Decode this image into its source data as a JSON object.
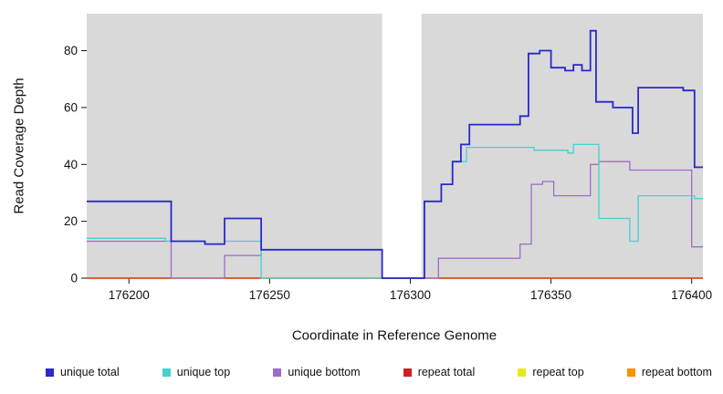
{
  "chart_data": {
    "type": "line",
    "subtype": "step",
    "title": "",
    "xlabel": "Coordinate in Reference Genome",
    "ylabel": "Read Coverage Depth",
    "xlim": [
      176185,
      176404
    ],
    "ylim": [
      0,
      93
    ],
    "xticks": [
      176200,
      176250,
      176300,
      176350,
      176400
    ],
    "yticks": [
      0,
      20,
      40,
      60,
      80
    ],
    "plot_bg": "#d9d9d9",
    "gap_region": [
      176290,
      176304
    ],
    "legend_position": "bottom",
    "series": [
      {
        "name": "unique total",
        "color": "#2929cc",
        "stroke_width": 1.8,
        "points": [
          [
            176185,
            27
          ],
          [
            176215,
            13
          ],
          [
            176227,
            12
          ],
          [
            176234,
            21
          ],
          [
            176247,
            10
          ],
          [
            176290,
            0
          ],
          [
            176305,
            27
          ],
          [
            176311,
            33
          ],
          [
            176315,
            41
          ],
          [
            176318,
            47
          ],
          [
            176321,
            54
          ],
          [
            176339,
            57
          ],
          [
            176342,
            79
          ],
          [
            176346,
            80
          ],
          [
            176350,
            74
          ],
          [
            176355,
            73
          ],
          [
            176358,
            75
          ],
          [
            176361,
            73
          ],
          [
            176364,
            87
          ],
          [
            176366,
            62
          ],
          [
            176372,
            60
          ],
          [
            176379,
            51
          ],
          [
            176381,
            67
          ],
          [
            176397,
            66
          ],
          [
            176401,
            39
          ],
          [
            176404,
            39
          ]
        ]
      },
      {
        "name": "unique top",
        "color": "#45d1d1",
        "stroke_width": 1.3,
        "points": [
          [
            176185,
            14
          ],
          [
            176213,
            13
          ],
          [
            176227,
            12
          ],
          [
            176234,
            13
          ],
          [
            176247,
            0
          ],
          [
            176305,
            27
          ],
          [
            176311,
            33
          ],
          [
            176315,
            41
          ],
          [
            176320,
            46
          ],
          [
            176344,
            45
          ],
          [
            176356,
            44
          ],
          [
            176358,
            47
          ],
          [
            176367,
            21
          ],
          [
            176378,
            13
          ],
          [
            176381,
            29
          ],
          [
            176401,
            28
          ],
          [
            176404,
            28
          ]
        ]
      },
      {
        "name": "unique bottom",
        "color": "#9e6bc9",
        "stroke_width": 1.3,
        "points": [
          [
            176185,
            13
          ],
          [
            176215,
            0
          ],
          [
            176234,
            8
          ],
          [
            176247,
            10
          ],
          [
            176290,
            0
          ],
          [
            176310,
            7
          ],
          [
            176339,
            12
          ],
          [
            176343,
            33
          ],
          [
            176347,
            34
          ],
          [
            176351,
            29
          ],
          [
            176364,
            40
          ],
          [
            176367,
            41
          ],
          [
            176378,
            38
          ],
          [
            176400,
            11
          ],
          [
            176404,
            11
          ]
        ]
      },
      {
        "name": "repeat total",
        "color": "#cc2222",
        "stroke_width": 1.2,
        "points": [
          [
            176185,
            0
          ],
          [
            176404,
            0
          ]
        ]
      },
      {
        "name": "repeat top",
        "color": "#e8e81f",
        "stroke_width": 1.2,
        "points": [
          [
            176185,
            0
          ],
          [
            176404,
            0
          ]
        ]
      },
      {
        "name": "repeat bottom",
        "color": "#f59300",
        "stroke_width": 1.5,
        "points": [
          [
            176185,
            0
          ],
          [
            176404,
            0
          ]
        ]
      }
    ]
  }
}
